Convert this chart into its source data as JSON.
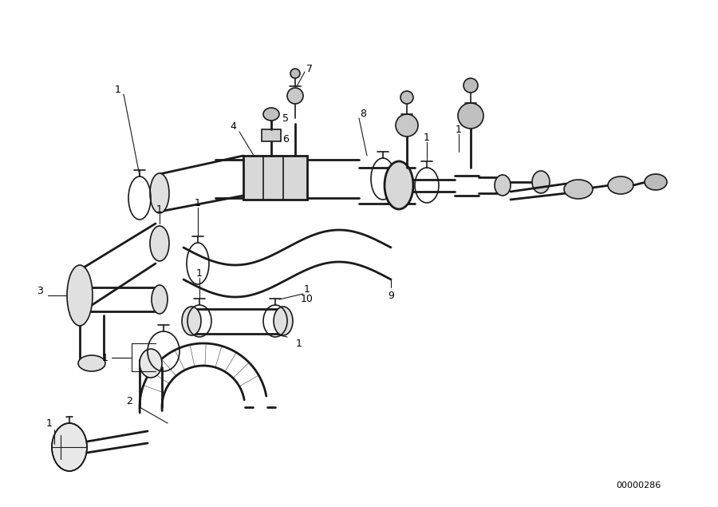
{
  "background_color": "#ffffff",
  "line_color": "#1a1a1a",
  "diagram_id": "00000286",
  "figsize": [
    9.0,
    6.35
  ],
  "dpi": 100
}
